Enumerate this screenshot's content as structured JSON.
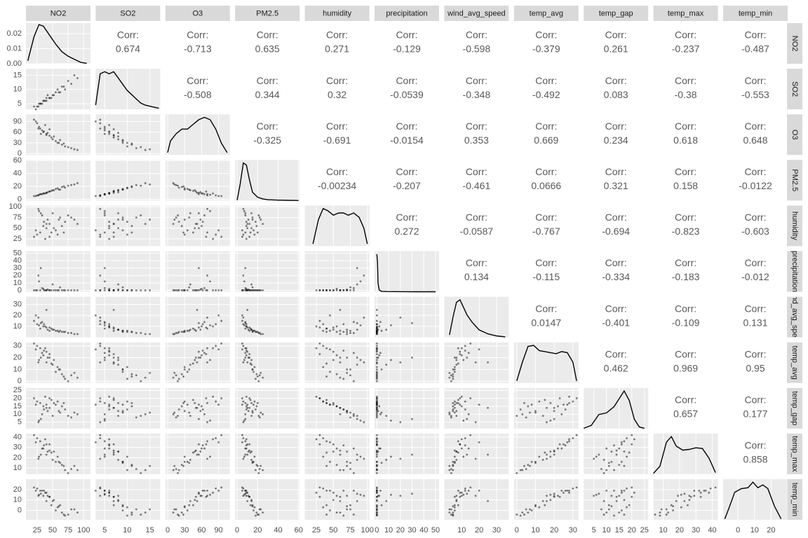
{
  "chart_data": {
    "type": "scatter-matrix",
    "corr_label": "Corr:",
    "density_ylim": [
      0,
      0.027
    ],
    "density_yticks": [
      {
        "value": 0,
        "label": "0.00"
      },
      {
        "value": 0.01,
        "label": "0.01"
      },
      {
        "value": 0.02,
        "label": "0.02"
      }
    ],
    "variables": [
      {
        "name": "NO2",
        "lim": [
          7,
          111
        ],
        "ticks": [
          25,
          50,
          75,
          100
        ],
        "density": {
          "x": [
            10,
            20,
            28,
            35,
            45,
            55,
            65,
            75,
            85,
            95,
            105
          ],
          "y": [
            0.002,
            0.018,
            0.026,
            0.025,
            0.019,
            0.013,
            0.008,
            0.005,
            0.003,
            0.001,
            0.0003
          ]
        }
      },
      {
        "name": "SO2",
        "lim": [
          3,
          17.3
        ],
        "ticks": [
          5,
          10,
          15
        ],
        "density": {
          "x": [
            3,
            4,
            5,
            6,
            7,
            8,
            9,
            10,
            11,
            12,
            13,
            14,
            15,
            16,
            17
          ],
          "y": [
            0.02,
            0.17,
            0.18,
            0.17,
            0.18,
            0.15,
            0.12,
            0.09,
            0.07,
            0.05,
            0.03,
            0.02,
            0.015,
            0.01,
            0.005
          ]
        }
      },
      {
        "name": "O3",
        "lim": [
          -4,
          110
        ],
        "ticks": [
          0,
          30,
          60,
          90
        ],
        "density": {
          "x": [
            0,
            5,
            15,
            25,
            35,
            45,
            55,
            65,
            75,
            85,
            95,
            105
          ],
          "y": [
            0.001,
            0.006,
            0.009,
            0.011,
            0.011,
            0.013,
            0.015,
            0.016,
            0.015,
            0.011,
            0.005,
            0.001
          ]
        }
      },
      {
        "name": "PM2.5",
        "lim": [
          -2,
          61
        ],
        "ticks": [
          0,
          20,
          40,
          60
        ],
        "density": {
          "x": [
            0,
            3,
            6,
            9,
            12,
            15,
            20,
            25,
            30,
            40,
            50,
            60
          ],
          "y": [
            0.001,
            0.04,
            0.09,
            0.085,
            0.05,
            0.02,
            0.008,
            0.004,
            0.002,
            0.001,
            0.0005,
            0.0002
          ]
        }
      },
      {
        "name": "humidity",
        "lim": [
          8,
          103
        ],
        "ticks": [
          25,
          50,
          75,
          100
        ],
        "density": {
          "x": [
            20,
            28,
            35,
            42,
            50,
            58,
            65,
            72,
            80,
            88,
            95,
            100
          ],
          "y": [
            0.001,
            0.012,
            0.017,
            0.016,
            0.014,
            0.015,
            0.015,
            0.014,
            0.015,
            0.013,
            0.008,
            0.001
          ]
        }
      },
      {
        "name": "precipitation",
        "lim": [
          -2,
          53
        ],
        "ticks": [
          0,
          10,
          20,
          30,
          40,
          50
        ],
        "density": {
          "x": [
            0,
            0.5,
            1,
            2,
            4,
            8,
            15,
            25,
            35,
            50
          ],
          "y": [
            0.9,
            0.7,
            0.2,
            0.04,
            0.01,
            0.005,
            0.003,
            0.001,
            0.0005,
            0.0002
          ]
        }
      },
      {
        "name": "wind_avg_speed",
        "lim": [
          0,
          37
        ],
        "ticks": [
          10,
          20,
          30
        ],
        "density": {
          "x": [
            3,
            5,
            7,
            9,
            11,
            13,
            16,
            20,
            25,
            30,
            35
          ],
          "y": [
            0.005,
            0.04,
            0.07,
            0.075,
            0.06,
            0.045,
            0.03,
            0.015,
            0.007,
            0.003,
            0.001
          ]
        }
      },
      {
        "name": "temp_avg",
        "lim": [
          -1.5,
          33
        ],
        "ticks": [
          0,
          10,
          20,
          30
        ],
        "density": {
          "x": [
            0,
            3,
            6,
            9,
            12,
            15,
            18,
            21,
            24,
            27,
            30,
            32
          ],
          "y": [
            0.002,
            0.02,
            0.035,
            0.036,
            0.031,
            0.03,
            0.029,
            0.028,
            0.03,
            0.029,
            0.02,
            0.002
          ]
        }
      },
      {
        "name": "temp_gap",
        "lim": [
          1,
          26.5
        ],
        "ticks": [
          5,
          10,
          15,
          20,
          25
        ],
        "density": {
          "x": [
            1,
            4,
            7,
            10,
            13,
            15,
            17,
            19,
            21,
            23,
            25
          ],
          "y": [
            0.001,
            0.01,
            0.045,
            0.05,
            0.07,
            0.095,
            0.12,
            0.09,
            0.03,
            0.005,
            0.001
          ]
        }
      },
      {
        "name": "temp_max",
        "lim": [
          4,
          43.5
        ],
        "ticks": [
          10,
          20,
          30,
          40
        ],
        "density": {
          "x": [
            4,
            8,
            12,
            15,
            18,
            22,
            26,
            30,
            34,
            38,
            42
          ],
          "y": [
            0.001,
            0.01,
            0.04,
            0.047,
            0.035,
            0.03,
            0.031,
            0.033,
            0.032,
            0.02,
            0.002
          ]
        }
      },
      {
        "name": "temp_min",
        "lim": [
          -9,
          30
        ],
        "ticks": [
          0,
          10,
          20
        ],
        "density": {
          "x": [
            -8,
            -5,
            -2,
            2,
            6,
            9,
            12,
            15,
            18,
            22,
            26
          ],
          "y": [
            0.001,
            0.015,
            0.03,
            0.034,
            0.035,
            0.041,
            0.035,
            0.038,
            0.034,
            0.015,
            0.001
          ]
        }
      }
    ],
    "correlations": [
      [
        0.674,
        -0.713,
        0.635,
        0.271,
        -0.129,
        -0.598,
        -0.379,
        0.261,
        -0.237,
        -0.487
      ],
      [
        -0.508,
        0.344,
        0.32,
        -0.0539,
        -0.348,
        -0.492,
        0.083,
        -0.38,
        -0.553
      ],
      [
        -0.325,
        -0.691,
        -0.0154,
        0.353,
        0.669,
        0.234,
        0.618,
        0.648
      ],
      [
        -0.00234,
        -0.207,
        -0.461,
        0.0666,
        0.321,
        0.158,
        -0.0122
      ],
      [
        0.272,
        -0.0587,
        -0.767,
        -0.694,
        -0.823,
        -0.603
      ],
      [
        0.134,
        -0.115,
        -0.334,
        -0.183,
        -0.012
      ],
      [
        0.0147,
        -0.401,
        -0.109,
        0.131
      ],
      [
        0.462,
        0.969,
        0.95
      ],
      [
        0.657,
        0.177
      ],
      [
        0.858
      ]
    ],
    "observations": [
      [
        30,
        5,
        70,
        8,
        40,
        0,
        8,
        28,
        17,
        36,
        19
      ],
      [
        25,
        4,
        85,
        6,
        35,
        0,
        12,
        30,
        18,
        39,
        21
      ],
      [
        45,
        7,
        50,
        12,
        60,
        0,
        6,
        20,
        14,
        27,
        13
      ],
      [
        60,
        9,
        30,
        15,
        70,
        0,
        5,
        10,
        12,
        16,
        4
      ],
      [
        80,
        12,
        15,
        22,
        75,
        0,
        4,
        5,
        8,
        9,
        1
      ],
      [
        35,
        6,
        60,
        9,
        55,
        2,
        10,
        22,
        15,
        29,
        14
      ],
      [
        20,
        4,
        95,
        5,
        30,
        0,
        15,
        32,
        20,
        42,
        22
      ],
      [
        50,
        8,
        40,
        14,
        85,
        8,
        7,
        14,
        9,
        18,
        9
      ],
      [
        70,
        10,
        20,
        18,
        65,
        0,
        5,
        2,
        13,
        8,
        -5
      ],
      [
        40,
        6,
        55,
        10,
        50,
        0,
        9,
        25,
        16,
        33,
        17
      ],
      [
        28,
        5,
        75,
        7,
        90,
        12,
        11,
        18,
        6,
        21,
        15
      ],
      [
        55,
        9,
        35,
        16,
        45,
        0,
        6,
        8,
        16,
        16,
        0
      ],
      [
        90,
        14,
        10,
        25,
        60,
        0,
        3,
        3,
        10,
        8,
        -2
      ],
      [
        33,
        5,
        65,
        8,
        80,
        3,
        14,
        24,
        10,
        29,
        19
      ],
      [
        48,
        7,
        45,
        13,
        40,
        0,
        8,
        15,
        19,
        25,
        5
      ],
      [
        65,
        11,
        25,
        19,
        55,
        0,
        5,
        6,
        15,
        13,
        -2
      ],
      [
        38,
        6,
        80,
        9,
        25,
        0,
        10,
        28,
        21,
        38,
        17
      ],
      [
        42,
        8,
        58,
        11,
        70,
        1,
        7,
        20,
        12,
        26,
        14
      ],
      [
        27,
        4,
        70,
        6,
        95,
        20,
        18,
        16,
        5,
        19,
        14
      ],
      [
        58,
        10,
        30,
        17,
        35,
        0,
        6,
        12,
        18,
        21,
        3
      ],
      [
        75,
        13,
        18,
        21,
        80,
        0,
        4,
        0,
        9,
        5,
        -4
      ],
      [
        36,
        6,
        62,
        9,
        65,
        0,
        12,
        26,
        13,
        32,
        19
      ],
      [
        52,
        8,
        48,
        14,
        50,
        0,
        7,
        18,
        17,
        26,
        10
      ],
      [
        23,
        3,
        90,
        5,
        45,
        0,
        20,
        27,
        16,
        35,
        19
      ],
      [
        62,
        9,
        38,
        15,
        75,
        4,
        6,
        10,
        11,
        15,
        5
      ],
      [
        45,
        7,
        68,
        12,
        30,
        0,
        9,
        23,
        20,
        33,
        13
      ],
      [
        31,
        5,
        55,
        8,
        85,
        30,
        13,
        20,
        7,
        23,
        16
      ],
      [
        68,
        11,
        28,
        20,
        40,
        0,
        5,
        4,
        17,
        12,
        -4
      ],
      [
        40,
        7,
        52,
        10,
        60,
        0,
        25,
        16,
        14,
        23,
        9
      ],
      [
        85,
        15,
        12,
        23,
        70,
        0,
        3,
        7,
        11,
        12,
        1
      ]
    ]
  }
}
